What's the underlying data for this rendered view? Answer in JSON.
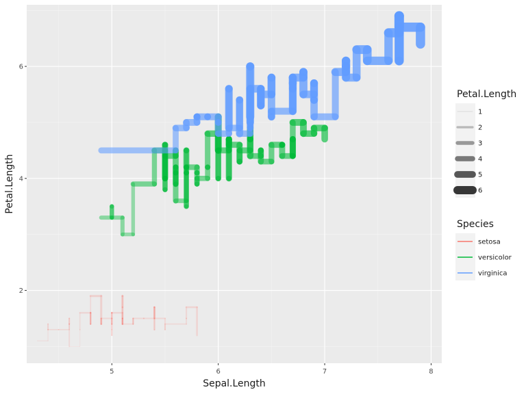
{
  "chart_data": {
    "type": "line",
    "geom": "step",
    "title": "",
    "xlabel": "Sepal.Length",
    "ylabel": "Petal.Length",
    "xlim": [
      4.2,
      8.1
    ],
    "ylim": [
      0.7,
      7.1
    ],
    "x_ticks": [
      5,
      6,
      7,
      8
    ],
    "y_ticks": [
      2,
      4,
      6
    ],
    "x_tick_labels": [
      "5",
      "6",
      "7",
      "8"
    ],
    "y_tick_labels": [
      "2",
      "4",
      "6"
    ],
    "grid": true,
    "linewidth_mapped_to": "Petal.Length",
    "alpha_mapped_to": "Petal.Length",
    "series": [
      {
        "name": "setosa",
        "color": "#F8766D",
        "x": [
          4.3,
          4.4,
          4.4,
          4.4,
          4.5,
          4.6,
          4.6,
          4.6,
          4.6,
          4.7,
          4.7,
          4.8,
          4.8,
          4.8,
          4.8,
          4.8,
          4.9,
          4.9,
          4.9,
          4.9,
          5.0,
          5.0,
          5.0,
          5.0,
          5.0,
          5.0,
          5.0,
          5.0,
          5.1,
          5.1,
          5.1,
          5.1,
          5.1,
          5.1,
          5.1,
          5.1,
          5.2,
          5.2,
          5.2,
          5.3,
          5.4,
          5.4,
          5.4,
          5.4,
          5.4,
          5.5,
          5.5,
          5.7,
          5.7,
          5.8
        ],
        "y": [
          1.1,
          1.4,
          1.3,
          1.3,
          1.3,
          1.4,
          1.5,
          1.4,
          1.0,
          1.3,
          1.6,
          1.6,
          1.4,
          1.6,
          1.4,
          1.9,
          1.4,
          1.5,
          1.4,
          1.5,
          1.4,
          1.5,
          1.6,
          1.2,
          1.3,
          1.4,
          1.6,
          1.6,
          1.4,
          1.5,
          1.4,
          1.5,
          1.5,
          1.7,
          1.9,
          1.4,
          1.5,
          1.4,
          1.5,
          1.5,
          1.7,
          1.5,
          1.7,
          1.3,
          1.5,
          1.3,
          1.4,
          1.5,
          1.7,
          1.2
        ]
      },
      {
        "name": "versicolor",
        "color": "#00BA38",
        "x": [
          4.9,
          5.0,
          5.0,
          5.1,
          5.2,
          5.4,
          5.5,
          5.5,
          5.5,
          5.5,
          5.5,
          5.6,
          5.6,
          5.6,
          5.6,
          5.6,
          5.7,
          5.7,
          5.7,
          5.7,
          5.7,
          5.8,
          5.8,
          5.8,
          5.9,
          5.9,
          6.0,
          6.0,
          6.0,
          6.0,
          6.1,
          6.1,
          6.1,
          6.1,
          6.2,
          6.2,
          6.3,
          6.3,
          6.3,
          6.4,
          6.4,
          6.5,
          6.6,
          6.6,
          6.7,
          6.7,
          6.7,
          6.8,
          6.9,
          7.0
        ],
        "y": [
          3.3,
          3.5,
          3.3,
          3.0,
          3.9,
          4.5,
          4.0,
          4.6,
          4.0,
          3.8,
          4.4,
          4.5,
          3.9,
          4.1,
          4.2,
          3.6,
          4.5,
          4.2,
          4.1,
          3.5,
          4.2,
          4.1,
          3.9,
          4.0,
          4.2,
          4.8,
          4.5,
          4.0,
          5.1,
          4.5,
          4.7,
          4.0,
          4.7,
          4.6,
          4.3,
          4.5,
          4.7,
          4.9,
          4.4,
          4.5,
          4.3,
          4.6,
          4.6,
          4.4,
          4.7,
          4.4,
          5.0,
          4.8,
          4.9,
          4.7
        ]
      },
      {
        "name": "virginica",
        "color": "#619CFF",
        "x": [
          4.9,
          5.6,
          5.7,
          5.8,
          5.8,
          5.8,
          5.9,
          6.0,
          6.0,
          6.1,
          6.1,
          6.2,
          6.2,
          6.3,
          6.3,
          6.3,
          6.3,
          6.3,
          6.3,
          6.4,
          6.4,
          6.4,
          6.4,
          6.4,
          6.5,
          6.5,
          6.5,
          6.5,
          6.7,
          6.7,
          6.7,
          6.7,
          6.7,
          6.8,
          6.8,
          6.9,
          6.9,
          6.9,
          7.1,
          7.2,
          7.2,
          7.2,
          7.3,
          7.4,
          7.6,
          7.7,
          7.7,
          7.7,
          7.7,
          7.9
        ],
        "y": [
          4.5,
          4.9,
          5.0,
          5.1,
          5.1,
          5.1,
          5.1,
          5.0,
          4.8,
          5.6,
          4.9,
          5.4,
          4.8,
          6.0,
          5.1,
          4.9,
          5.6,
          5.0,
          5.6,
          5.3,
          5.5,
          5.6,
          5.3,
          5.5,
          5.8,
          5.5,
          5.1,
          5.2,
          5.6,
          5.8,
          5.7,
          5.2,
          5.8,
          5.9,
          5.5,
          5.7,
          5.4,
          5.1,
          5.9,
          6.1,
          6.0,
          5.8,
          6.3,
          6.1,
          6.6,
          6.9,
          6.7,
          6.1,
          6.7,
          6.4
        ]
      }
    ],
    "legends": [
      {
        "title": "Petal.Length",
        "kind": "size",
        "entries": [
          {
            "label": "1",
            "value": 1
          },
          {
            "label": "2",
            "value": 2
          },
          {
            "label": "3",
            "value": 3
          },
          {
            "label": "4",
            "value": 4
          },
          {
            "label": "5",
            "value": 5
          },
          {
            "label": "6",
            "value": 6
          }
        ]
      },
      {
        "title": "Species",
        "kind": "color",
        "entries": [
          {
            "label": "setosa",
            "color": "#F8766D"
          },
          {
            "label": "versicolor",
            "color": "#00BA38"
          },
          {
            "label": "virginica",
            "color": "#619CFF"
          }
        ]
      }
    ],
    "legend_placement": "right"
  }
}
